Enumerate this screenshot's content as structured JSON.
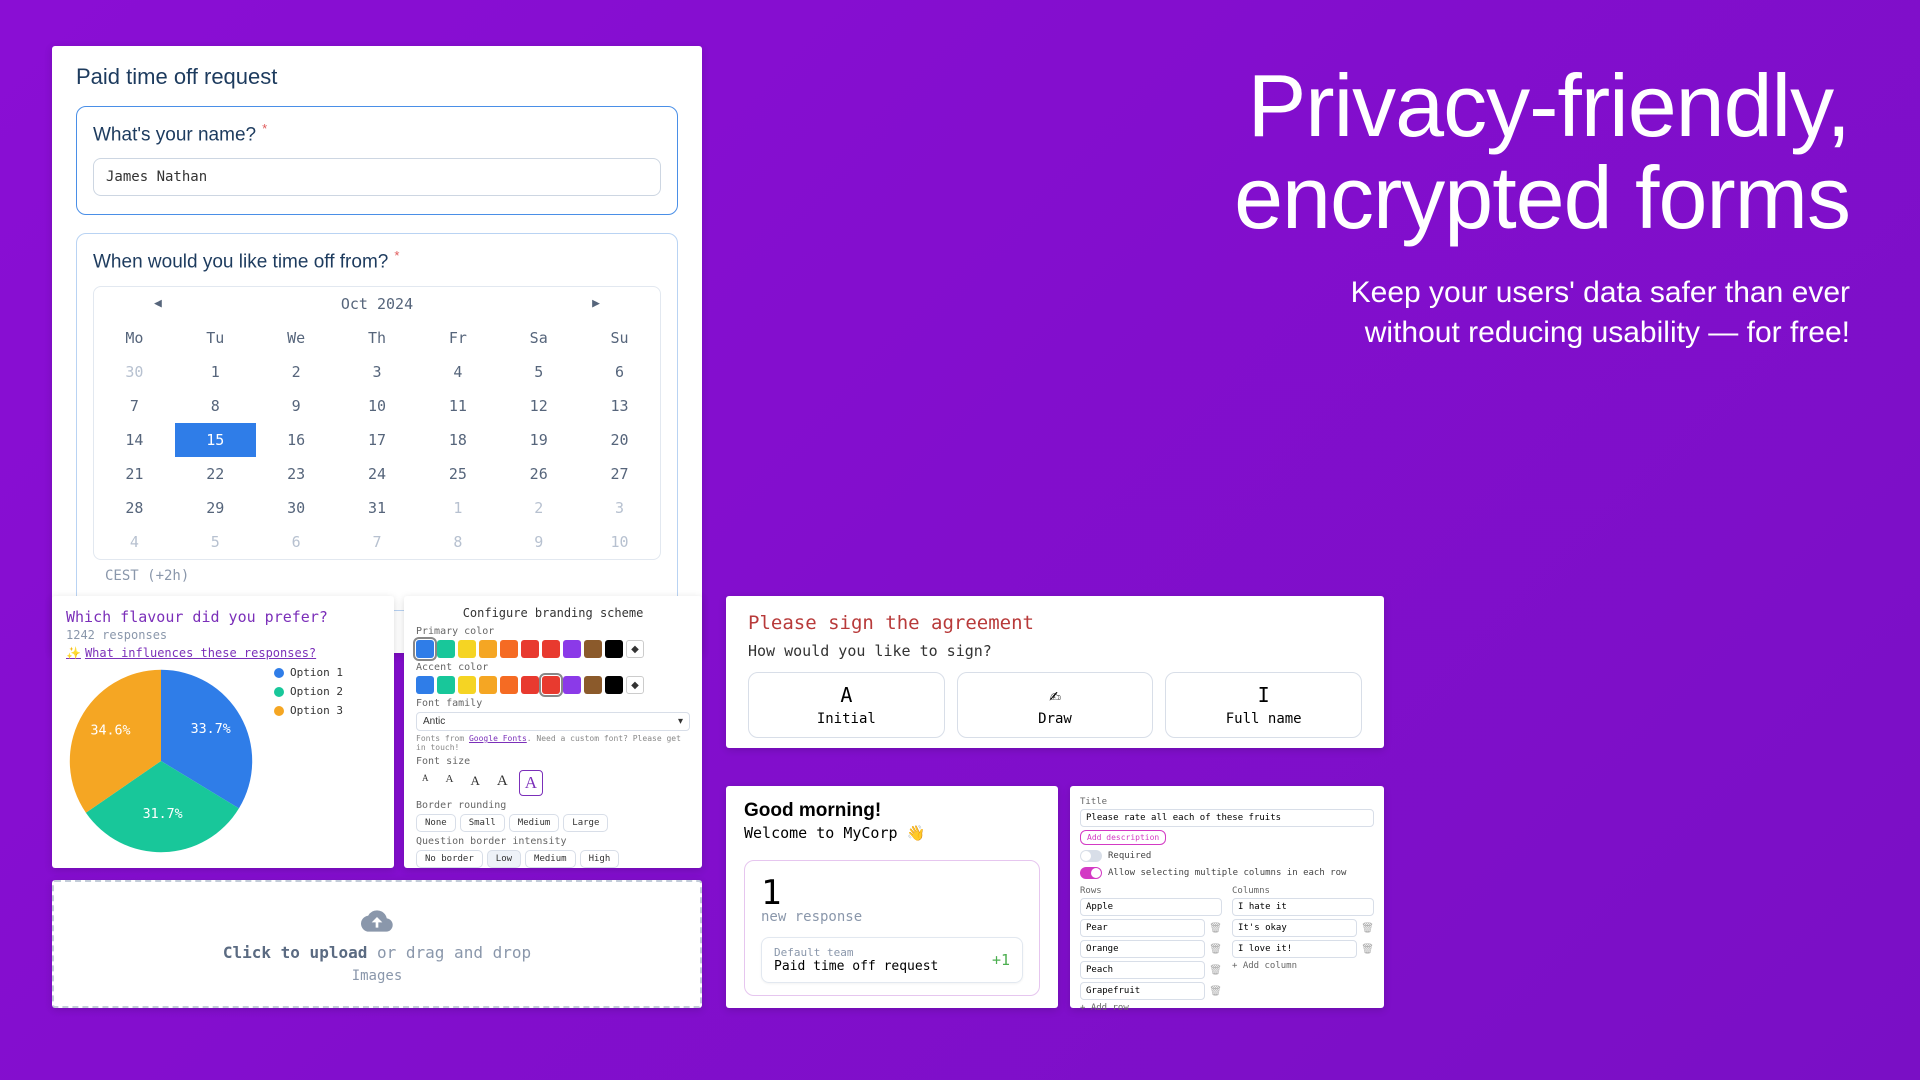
{
  "headline": {
    "line1": "Privacy-friendly,",
    "line2": "encrypted forms",
    "sub1": "Keep  your users' data safer than ever",
    "sub2": "without reducing usability — for free!"
  },
  "pto": {
    "title": "Paid time off request",
    "q1": "What's your name?",
    "name_value": "James Nathan",
    "q2": "When would you like time off from?",
    "month_label": "Oct 2024",
    "timezone": "CEST (+2h)",
    "dow": [
      "Mo",
      "Tu",
      "We",
      "Th",
      "Fr",
      "Sa",
      "Su"
    ],
    "days": [
      {
        "n": "30",
        "out": true
      },
      {
        "n": "1"
      },
      {
        "n": "2"
      },
      {
        "n": "3"
      },
      {
        "n": "4"
      },
      {
        "n": "5"
      },
      {
        "n": "6"
      },
      {
        "n": "7"
      },
      {
        "n": "8"
      },
      {
        "n": "9"
      },
      {
        "n": "10"
      },
      {
        "n": "11"
      },
      {
        "n": "12"
      },
      {
        "n": "13"
      },
      {
        "n": "14"
      },
      {
        "n": "15",
        "sel": true
      },
      {
        "n": "16"
      },
      {
        "n": "17"
      },
      {
        "n": "18"
      },
      {
        "n": "19"
      },
      {
        "n": "20"
      },
      {
        "n": "21"
      },
      {
        "n": "22"
      },
      {
        "n": "23"
      },
      {
        "n": "24"
      },
      {
        "n": "25"
      },
      {
        "n": "26"
      },
      {
        "n": "27"
      },
      {
        "n": "28"
      },
      {
        "n": "29"
      },
      {
        "n": "30"
      },
      {
        "n": "31"
      },
      {
        "n": "1",
        "out": true
      },
      {
        "n": "2",
        "out": true
      },
      {
        "n": "3",
        "out": true
      },
      {
        "n": "4",
        "out": true
      },
      {
        "n": "5",
        "out": true
      },
      {
        "n": "6",
        "out": true
      },
      {
        "n": "7",
        "out": true
      },
      {
        "n": "8",
        "out": true
      },
      {
        "n": "9",
        "out": true
      },
      {
        "n": "10",
        "out": true
      }
    ]
  },
  "chart": {
    "title": "Which flavour did you prefer?",
    "responses": "1242 responses",
    "influence": "What influences these responses?",
    "slices": [
      {
        "label": "Option 1",
        "pct": 33.7,
        "color": "#2f7de8"
      },
      {
        "label": "Option 2",
        "pct": 31.7,
        "color": "#18c79a"
      },
      {
        "label": "Option 3",
        "pct": 34.6,
        "color": "#f5a623"
      }
    ]
  },
  "branding": {
    "title": "Configure branding scheme",
    "primary_label": "Primary color",
    "accent_label": "Accent color",
    "colors": [
      "#2f7de8",
      "#18c79a",
      "#f5d423",
      "#f5a623",
      "#f56b23",
      "#e83a2f",
      "#e83a2f",
      "#8b3ae8",
      "#8b5a2b",
      "#000000"
    ],
    "drop": " ",
    "primary_sel": 0,
    "accent_sel": 6,
    "font_label": "Font family",
    "font_value": "Antic",
    "font_hint_pre": "Fonts from ",
    "font_hint_link": "Google Fonts",
    "font_hint_post": ". Need a custom font? Please get in touch!",
    "size_label": "Font size",
    "sizes": [
      "A",
      "A",
      "A",
      "A",
      "A"
    ],
    "size_sel": 4,
    "rounding_label": "Border rounding",
    "rounding": [
      "None",
      "Small",
      "Medium",
      "Large"
    ],
    "intensity_label": "Question border intensity",
    "intensity": [
      "No border",
      "Low",
      "Medium",
      "High"
    ],
    "intensity_sel": 1
  },
  "upload": {
    "main_bold": "Click to upload",
    "main_rest": " or drag and drop",
    "sub": "Images"
  },
  "sign": {
    "title": "Please sign the agreement",
    "question": "How would you like to sign?",
    "opts": [
      {
        "icon": "A",
        "label": "Initial"
      },
      {
        "icon": "✍",
        "label": "Draw"
      },
      {
        "icon": "𝙸",
        "label": "Full name"
      }
    ]
  },
  "dash": {
    "greeting": "Good morning!",
    "welcome": "Welcome to MyCorp 👋",
    "stat_num": "1",
    "stat_label": "new response",
    "team": "Default team",
    "form": "Paid time off request",
    "delta": "+1"
  },
  "gridcfg": {
    "title_label": "Title",
    "title_value": "Please rate all each of these fruits",
    "add_desc": "Add description",
    "required": "Required",
    "allow_multi": "Allow selecting multiple columns in each row",
    "rows_label": "Rows",
    "cols_label": "Columns",
    "rows": [
      "Apple",
      "Pear",
      "Orange",
      "Peach",
      "Grapefruit"
    ],
    "cols": [
      "I hate it",
      "It's okay",
      "I love it!"
    ],
    "add_row": "+ Add row",
    "add_col": "+ Add column"
  }
}
